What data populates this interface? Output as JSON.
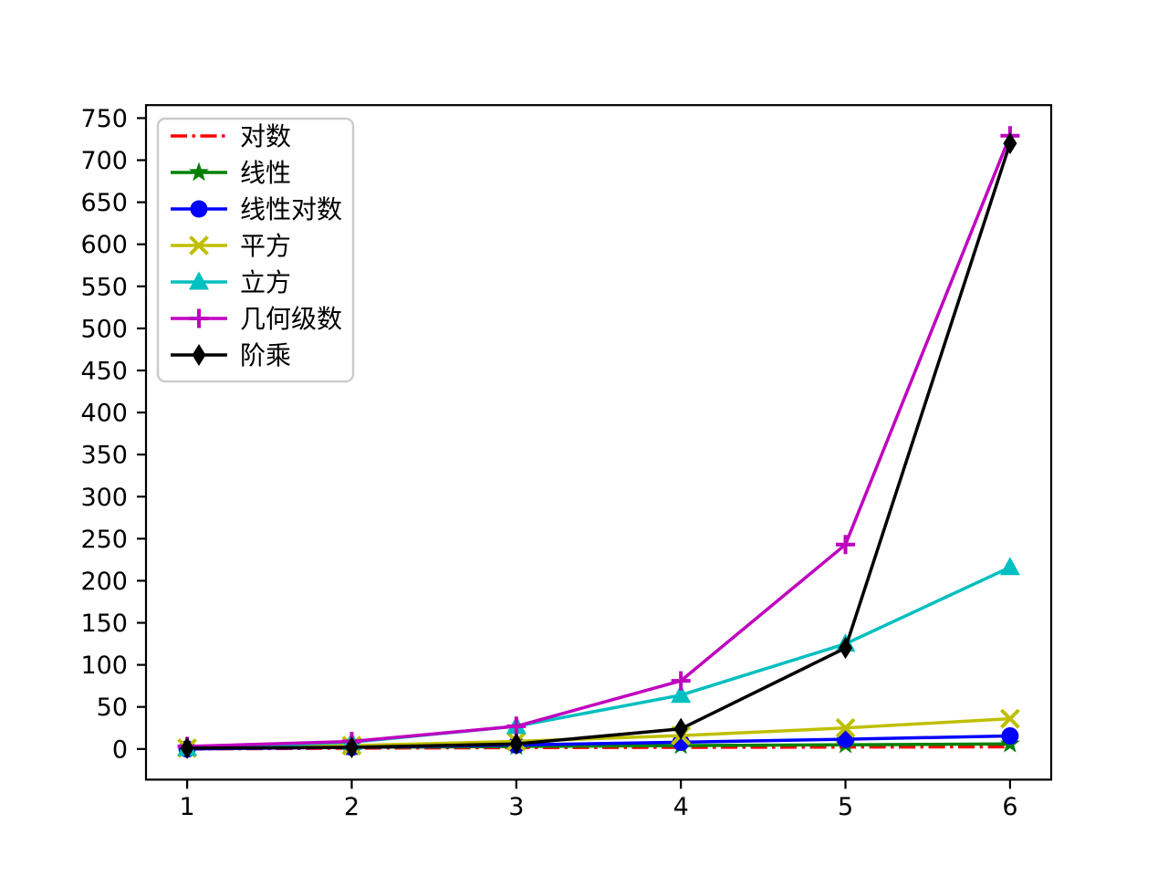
{
  "chart_data": {
    "type": "line",
    "title": "",
    "xlabel": "",
    "ylabel": "",
    "x": [
      1,
      2,
      3,
      4,
      5,
      6
    ],
    "xticks": [
      "1",
      "2",
      "3",
      "4",
      "5",
      "6"
    ],
    "yticks": [
      "0",
      "50",
      "100",
      "150",
      "200",
      "250",
      "300",
      "350",
      "400",
      "450",
      "500",
      "550",
      "600",
      "650",
      "700",
      "750"
    ],
    "ytick_values": [
      0,
      50,
      100,
      150,
      200,
      250,
      300,
      350,
      400,
      450,
      500,
      550,
      600,
      650,
      700,
      750
    ],
    "xtick_values": [
      1,
      2,
      3,
      4,
      5,
      6
    ],
    "xlim": [
      0.75,
      6.25
    ],
    "ylim": [
      -36.45,
      765.45
    ],
    "grid": false,
    "legend_position": "upper-left",
    "series": [
      {
        "name": "对数",
        "color": "#ff0000",
        "linestyle": "dashdot",
        "marker": "none",
        "values": [
          0,
          1,
          1.58,
          2,
          2.32,
          2.58
        ]
      },
      {
        "name": "线性",
        "color": "#008000",
        "linestyle": "solid",
        "marker": "star",
        "values": [
          1,
          2,
          3,
          4,
          5,
          6
        ]
      },
      {
        "name": "线性对数",
        "color": "#0000ff",
        "linestyle": "solid",
        "marker": "circle",
        "values": [
          0,
          2,
          4.75,
          8,
          11.61,
          15.51
        ]
      },
      {
        "name": "平方",
        "color": "#bfbf00",
        "linestyle": "solid",
        "marker": "x",
        "values": [
          1,
          4,
          9,
          16,
          25,
          36
        ]
      },
      {
        "name": "立方",
        "color": "#00bfbf",
        "linestyle": "solid",
        "marker": "triangle-up",
        "values": [
          1,
          8,
          27,
          64,
          125,
          216
        ]
      },
      {
        "name": "几何级数",
        "color": "#bf00bf",
        "linestyle": "solid",
        "marker": "plus",
        "values": [
          3,
          9,
          27,
          81,
          243,
          729
        ]
      },
      {
        "name": "阶乘",
        "color": "#000000",
        "linestyle": "solid",
        "marker": "thin-diamond",
        "values": [
          1,
          2,
          6,
          24,
          120,
          720
        ]
      }
    ],
    "colors": {
      "axis": "#000000",
      "background": "#ffffff",
      "legend_border": "#cccccc"
    }
  }
}
